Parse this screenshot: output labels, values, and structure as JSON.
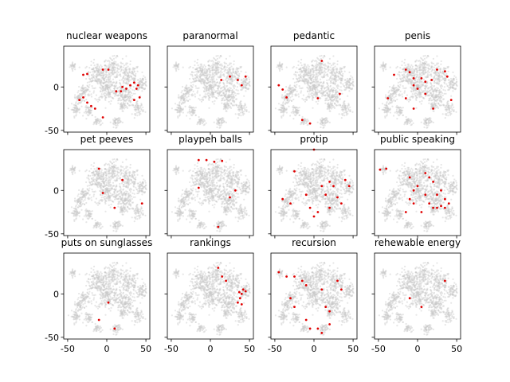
{
  "chart_data": {
    "type": "scatter",
    "layout": {
      "rows": 3,
      "cols": 4,
      "sharex": true,
      "sharey": true
    },
    "xlim": [
      -55,
      55
    ],
    "ylim": [
      -52,
      47
    ],
    "xticks": [
      -50,
      0,
      50
    ],
    "yticks": [
      -50,
      0
    ],
    "background_points": {
      "color": "#c8c8c8",
      "description": "gray t-SNE embedding of all terms"
    },
    "highlight_color": "#e00000",
    "clusters": [
      {
        "x": -43,
        "y": 24,
        "r": 3.5,
        "n": 28
      },
      {
        "x": -12,
        "y": 15,
        "r": 11,
        "n": 160
      },
      {
        "x": 8,
        "y": 22,
        "r": 10,
        "n": 130
      },
      {
        "x": 28,
        "y": 12,
        "r": 12,
        "n": 140
      },
      {
        "x": 45,
        "y": 4,
        "r": 6,
        "n": 70
      },
      {
        "x": 0,
        "y": -2,
        "r": 13,
        "n": 200
      },
      {
        "x": 22,
        "y": -10,
        "r": 10,
        "n": 140
      },
      {
        "x": -28,
        "y": -5,
        "r": 6,
        "n": 60
      },
      {
        "x": -35,
        "y": -13,
        "r": 5,
        "n": 50
      },
      {
        "x": -40,
        "y": -26,
        "r": 5,
        "n": 50
      },
      {
        "x": -22,
        "y": -28,
        "r": 5,
        "n": 45
      },
      {
        "x": 40,
        "y": -25,
        "r": 6,
        "n": 60
      },
      {
        "x": 12,
        "y": -40,
        "r": 5,
        "n": 50
      },
      {
        "x": -12,
        "y": -40,
        "r": 4,
        "n": 35
      },
      {
        "x": 20,
        "y": -22,
        "r": 4,
        "n": 35
      }
    ],
    "panels": [
      {
        "title": "nuclear weapons",
        "highlights": [
          [
            -30,
            14
          ],
          [
            -25,
            15
          ],
          [
            -5,
            20
          ],
          [
            2,
            20
          ],
          [
            12,
            -5
          ],
          [
            18,
            -5
          ],
          [
            20,
            0
          ],
          [
            25,
            -2
          ],
          [
            30,
            2
          ],
          [
            35,
            5
          ],
          [
            38,
            -2
          ],
          [
            40,
            2
          ],
          [
            42,
            -12
          ],
          [
            35,
            -15
          ],
          [
            -30,
            -12
          ],
          [
            -25,
            -18
          ],
          [
            -20,
            -22
          ],
          [
            -15,
            -25
          ],
          [
            -5,
            -35
          ],
          [
            -35,
            -15
          ]
        ]
      },
      {
        "title": "paranormal",
        "highlights": [
          [
            14,
            8
          ],
          [
            25,
            12
          ],
          [
            35,
            8
          ],
          [
            40,
            2
          ],
          [
            45,
            12
          ]
        ]
      },
      {
        "title": "pedantic",
        "highlights": [
          [
            -45,
            2
          ],
          [
            -40,
            -3
          ],
          [
            -35,
            -12
          ],
          [
            10,
            30
          ],
          [
            5,
            -13
          ],
          [
            33,
            -8
          ],
          [
            -15,
            -38
          ],
          [
            -5,
            -42
          ]
        ]
      },
      {
        "title": "penis",
        "highlights": [
          [
            -30,
            14
          ],
          [
            -15,
            20
          ],
          [
            -10,
            17
          ],
          [
            -5,
            10
          ],
          [
            5,
            10
          ],
          [
            10,
            6
          ],
          [
            18,
            8
          ],
          [
            25,
            20
          ],
          [
            35,
            18
          ],
          [
            38,
            12
          ],
          [
            43,
            -15
          ],
          [
            -38,
            -13
          ],
          [
            -15,
            -13
          ],
          [
            -5,
            2
          ],
          [
            0,
            -2
          ],
          [
            10,
            -8
          ],
          [
            20,
            -25
          ],
          [
            -5,
            -25
          ]
        ]
      },
      {
        "title": "pet peeves",
        "highlights": [
          [
            -10,
            25
          ],
          [
            -5,
            -3
          ],
          [
            20,
            12
          ],
          [
            45,
            -15
          ],
          [
            10,
            -20
          ]
        ]
      },
      {
        "title": "playpeh balls",
        "highlights": [
          [
            -15,
            35
          ],
          [
            -5,
            35
          ],
          [
            5,
            33
          ],
          [
            15,
            34
          ],
          [
            -15,
            3
          ],
          [
            25,
            -8
          ],
          [
            32,
            0
          ],
          [
            10,
            -42
          ]
        ]
      },
      {
        "title": "protip",
        "highlights": [
          [
            0,
            47
          ],
          [
            -25,
            22
          ],
          [
            -40,
            -10
          ],
          [
            -30,
            -15
          ],
          [
            -10,
            -5
          ],
          [
            -5,
            -20
          ],
          [
            0,
            -30
          ],
          [
            5,
            -25
          ],
          [
            10,
            5
          ],
          [
            15,
            -5
          ],
          [
            20,
            10
          ],
          [
            25,
            5
          ],
          [
            30,
            -8
          ],
          [
            35,
            -15
          ],
          [
            40,
            12
          ],
          [
            45,
            5
          ],
          [
            20,
            -20
          ]
        ]
      },
      {
        "title": "public speaking",
        "highlights": [
          [
            -48,
            24
          ],
          [
            -40,
            25
          ],
          [
            -10,
            -10
          ],
          [
            -5,
            0
          ],
          [
            0,
            5
          ],
          [
            10,
            20
          ],
          [
            15,
            15
          ],
          [
            20,
            10
          ],
          [
            25,
            -5
          ],
          [
            30,
            0
          ],
          [
            35,
            -10
          ],
          [
            -15,
            -25
          ],
          [
            5,
            -25
          ],
          [
            15,
            -15
          ],
          [
            20,
            -20
          ],
          [
            25,
            -20
          ],
          [
            30,
            -18
          ],
          [
            35,
            -20
          ],
          [
            40,
            -15
          ],
          [
            -10,
            15
          ],
          [
            10,
            -5
          ],
          [
            -5,
            -15
          ]
        ]
      },
      {
        "title": "puts on sunglasses",
        "highlights": [
          [
            2,
            -10
          ],
          [
            10,
            -40
          ],
          [
            -10,
            -30
          ]
        ]
      },
      {
        "title": "rankings",
        "highlights": [
          [
            10,
            30
          ],
          [
            15,
            20
          ],
          [
            20,
            15
          ],
          [
            35,
            -10
          ],
          [
            38,
            -5
          ],
          [
            40,
            0
          ],
          [
            42,
            5
          ],
          [
            40,
            -12
          ],
          [
            45,
            3
          ],
          [
            37,
            2
          ]
        ]
      },
      {
        "title": "recursion",
        "highlights": [
          [
            -45,
            25
          ],
          [
            -35,
            20
          ],
          [
            -25,
            20
          ],
          [
            -15,
            15
          ],
          [
            -10,
            10
          ],
          [
            -30,
            -5
          ],
          [
            -25,
            -15
          ],
          [
            -10,
            -30
          ],
          [
            5,
            -40
          ],
          [
            10,
            -45
          ],
          [
            20,
            -35
          ],
          [
            10,
            5
          ],
          [
            15,
            -15
          ],
          [
            30,
            15
          ],
          [
            35,
            5
          ],
          [
            20,
            -20
          ],
          [
            -5,
            -40
          ]
        ]
      },
      {
        "title": "rehewable energy",
        "highlights": [
          [
            35,
            15
          ],
          [
            -10,
            -5
          ],
          [
            5,
            -15
          ]
        ]
      }
    ]
  }
}
